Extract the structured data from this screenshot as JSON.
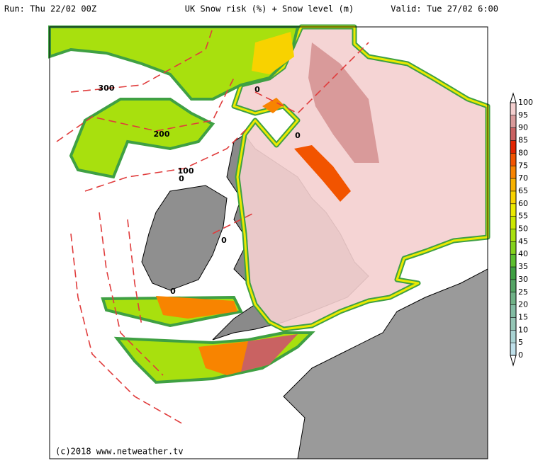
{
  "header": {
    "run": "Run: Thu 22/02 00Z",
    "title": "UK Snow risk (%) + Snow level (m)",
    "valid": "Valid: Tue 27/02 6:00"
  },
  "contour_labels": [
    300,
    200,
    100,
    0,
    0,
    0,
    0,
    0
  ],
  "colorbar": {
    "ticks": [
      0,
      5,
      10,
      15,
      20,
      25,
      30,
      35,
      40,
      45,
      50,
      55,
      60,
      65,
      70,
      75,
      80,
      85,
      90,
      95,
      100
    ],
    "colors": [
      "#bfe0ea",
      "#a9d3d3",
      "#95c6b6",
      "#82bca3",
      "#6fb287",
      "#55a566",
      "#3fa043",
      "#5cbf2e",
      "#84d21c",
      "#a8e00e",
      "#cce800",
      "#ebea00",
      "#f8d200",
      "#f8b200",
      "#f88400",
      "#f25400",
      "#e22400",
      "#c96262",
      "#d99a9a",
      "#f4cfcf"
    ]
  },
  "copyright": "(c)2018 www.netweather.tv"
}
